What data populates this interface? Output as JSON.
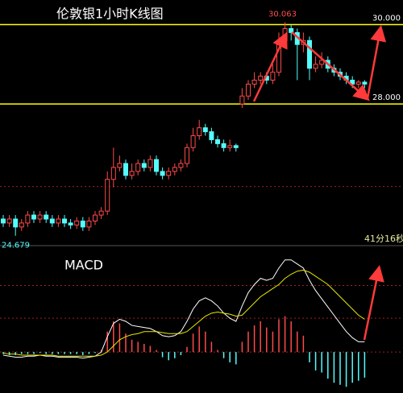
{
  "chart_data": [
    {
      "type": "candlestick",
      "title": "伦敦银1小时K线图",
      "open": [
        25.1,
        25.0,
        25.1,
        24.9,
        25.0,
        25.2,
        25.1,
        25.2,
        25.1,
        25.0,
        25.1,
        25.0,
        24.95,
        25.05,
        24.9,
        25.05,
        25.2,
        25.3,
        26.1,
        26.4,
        26.5,
        26.2,
        26.3,
        26.5,
        26.4,
        26.6,
        26.3,
        26.2,
        26.3,
        26.4,
        26.5,
        26.9,
        27.2,
        27.4,
        27.3,
        27.1,
        27.0,
        26.9,
        26.95,
        28.0,
        28.2,
        28.5,
        28.6,
        28.7,
        28.6,
        28.8,
        29.6,
        29.9,
        29.8,
        29.5,
        29.6,
        28.9,
        29.0,
        29.1,
        28.9,
        28.8,
        28.7,
        28.6,
        28.5,
        28.55
      ],
      "high": [
        25.2,
        25.2,
        25.2,
        25.1,
        25.3,
        25.3,
        25.3,
        25.3,
        25.2,
        25.2,
        25.2,
        25.1,
        25.15,
        25.15,
        25.15,
        25.3,
        25.4,
        26.3,
        26.9,
        26.7,
        26.6,
        26.5,
        26.6,
        26.6,
        26.7,
        26.7,
        26.4,
        26.4,
        26.5,
        26.6,
        27.0,
        27.4,
        27.6,
        27.5,
        27.4,
        27.2,
        27.1,
        27.1,
        27.0,
        28.4,
        28.6,
        28.8,
        28.8,
        28.8,
        29.0,
        29.8,
        30.063,
        30.0,
        29.9,
        29.8,
        29.7,
        29.2,
        29.3,
        29.2,
        29.0,
        28.9,
        28.8,
        28.7,
        28.6,
        28.6
      ],
      "low": [
        24.9,
        24.9,
        24.679,
        24.8,
        24.9,
        25.0,
        25.0,
        25.0,
        24.9,
        24.9,
        24.9,
        24.85,
        24.85,
        24.8,
        24.8,
        24.95,
        25.1,
        25.2,
        25.9,
        26.3,
        26.1,
        26.1,
        26.2,
        26.3,
        26.3,
        26.2,
        26.1,
        26.1,
        26.2,
        26.3,
        26.4,
        26.8,
        27.1,
        27.2,
        27.0,
        26.9,
        26.8,
        26.8,
        26.8,
        27.9,
        28.1,
        28.4,
        28.5,
        28.5,
        28.5,
        28.7,
        29.5,
        29.6,
        28.6,
        29.3,
        28.6,
        28.8,
        28.9,
        28.8,
        28.7,
        28.6,
        28.5,
        28.4,
        28.4,
        28.4
      ],
      "close": [
        25.0,
        25.1,
        24.9,
        25.0,
        25.2,
        25.1,
        25.2,
        25.1,
        25.0,
        25.1,
        25.0,
        24.95,
        25.05,
        24.9,
        25.05,
        25.2,
        25.3,
        26.1,
        26.4,
        26.5,
        26.2,
        26.3,
        26.5,
        26.4,
        26.6,
        26.3,
        26.2,
        26.3,
        26.4,
        26.5,
        26.9,
        27.2,
        27.4,
        27.3,
        27.1,
        27.0,
        26.9,
        26.95,
        26.9,
        28.2,
        28.5,
        28.6,
        28.7,
        28.6,
        28.8,
        29.6,
        29.9,
        29.8,
        29.5,
        29.6,
        28.9,
        29.0,
        29.1,
        28.9,
        28.8,
        28.7,
        28.6,
        28.5,
        28.55,
        28.5
      ],
      "ylim": [
        24.43,
        30.62
      ],
      "up_color": "#ff4a4a",
      "down_color": "#54fcfc",
      "reference_lines": [
        {
          "value": 30,
          "label": "30.000"
        },
        {
          "value": 28,
          "label": "28.000"
        }
      ],
      "reference_color": "#ffff00",
      "high_label": {
        "value": 30.063,
        "label": "30.063"
      },
      "low_label": {
        "value": 24.679,
        "label": "24.679"
      },
      "dashed_lines": [
        25.92
      ],
      "timer": "41分16秒"
    },
    {
      "type": "macd",
      "title": "MACD",
      "histogram": [
        -0.02,
        -0.03,
        -0.03,
        -0.02,
        -0.02,
        -0.02,
        -0.01,
        -0.02,
        -0.02,
        -0.02,
        -0.02,
        -0.02,
        -0.02,
        -0.03,
        -0.02,
        -0.01,
        0.02,
        0.2,
        0.3,
        0.28,
        0.18,
        0.12,
        0.1,
        0.08,
        0.06,
        0.02,
        -0.05,
        -0.08,
        -0.06,
        -0.03,
        0.05,
        0.18,
        0.25,
        0.2,
        0.1,
        0.02,
        -0.06,
        -0.1,
        -0.12,
        0.1,
        0.2,
        0.26,
        0.3,
        0.24,
        0.2,
        0.32,
        0.35,
        0.3,
        0.2,
        0.16,
        -0.1,
        -0.18,
        -0.2,
        -0.26,
        -0.3,
        -0.32,
        -0.34,
        -0.3,
        -0.28,
        -0.25
      ],
      "lines": [
        {
          "color": "#ffffff",
          "values": [
            -0.03,
            -0.04,
            -0.05,
            -0.05,
            -0.04,
            -0.04,
            -0.03,
            -0.04,
            -0.04,
            -0.05,
            -0.05,
            -0.05,
            -0.05,
            -0.06,
            -0.05,
            -0.04,
            0.0,
            0.15,
            0.28,
            0.32,
            0.3,
            0.26,
            0.25,
            0.24,
            0.23,
            0.2,
            0.16,
            0.15,
            0.16,
            0.2,
            0.3,
            0.42,
            0.5,
            0.53,
            0.5,
            0.45,
            0.38,
            0.33,
            0.3,
            0.45,
            0.58,
            0.66,
            0.72,
            0.7,
            0.72,
            0.82,
            0.9,
            0.9,
            0.86,
            0.82,
            0.7,
            0.6,
            0.52,
            0.44,
            0.36,
            0.28,
            0.2,
            0.14,
            0.1,
            0.1
          ]
        },
        {
          "color": "#e8e800",
          "values": [
            -0.01,
            -0.02,
            -0.02,
            -0.03,
            -0.03,
            -0.03,
            -0.03,
            -0.03,
            -0.03,
            -0.04,
            -0.04,
            -0.04,
            -0.04,
            -0.04,
            -0.04,
            -0.04,
            -0.03,
            0.0,
            0.06,
            0.12,
            0.15,
            0.17,
            0.18,
            0.2,
            0.2,
            0.2,
            0.19,
            0.18,
            0.18,
            0.18,
            0.2,
            0.25,
            0.3,
            0.35,
            0.38,
            0.39,
            0.38,
            0.37,
            0.35,
            0.36,
            0.42,
            0.48,
            0.54,
            0.58,
            0.62,
            0.66,
            0.72,
            0.76,
            0.79,
            0.8,
            0.78,
            0.74,
            0.7,
            0.66,
            0.6,
            0.54,
            0.48,
            0.42,
            0.36,
            0.32
          ]
        }
      ],
      "ylim": [
        -0.4,
        1.0
      ],
      "dashed_lines": [
        0,
        0.33,
        0.65
      ],
      "up_color": "#ff4a4a",
      "down_color": "#54fcfc"
    }
  ]
}
